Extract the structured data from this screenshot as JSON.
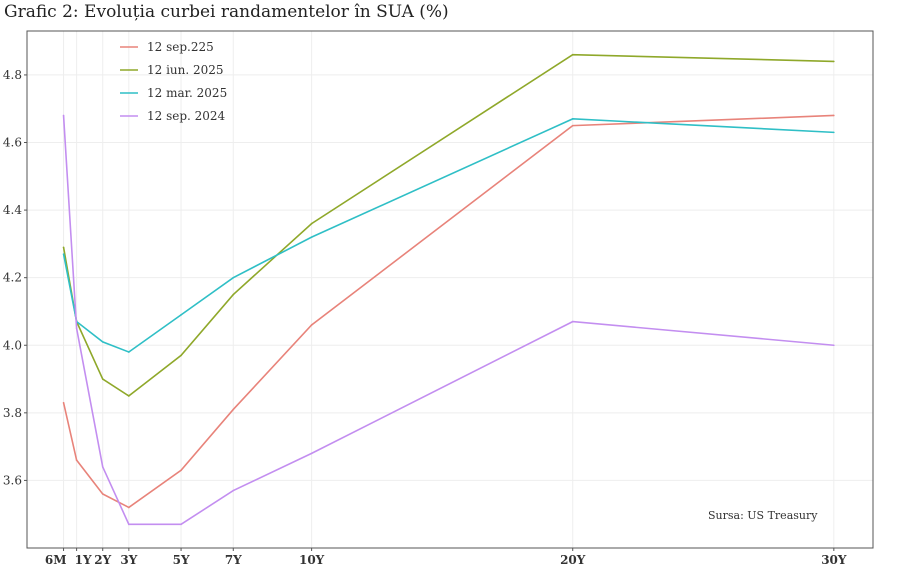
{
  "chart_data": {
    "type": "line",
    "title": "Grafic 2: Evoluția curbei randamentelor în SUA (%)",
    "xlabel": "",
    "ylabel": "",
    "x_years": [
      0.5,
      1,
      2,
      3,
      5,
      7,
      10,
      20,
      30
    ],
    "x_tick_labels": [
      "6M",
      "1Y",
      "2Y",
      "3Y",
      "5Y",
      "7Y",
      "10Y",
      "20Y",
      "30Y"
    ],
    "y_ticks": [
      3.6,
      3.8,
      4.0,
      4.2,
      4.4,
      4.6,
      4.8
    ],
    "ylim": [
      3.4,
      4.93
    ],
    "xlim": [
      -0.9,
      31.5
    ],
    "grid": true,
    "legend_position": "top-left",
    "series": [
      {
        "name": "12 sep.225",
        "color": "#e8837a",
        "values": [
          3.83,
          3.66,
          3.56,
          3.52,
          3.63,
          3.81,
          4.06,
          4.65,
          4.68
        ]
      },
      {
        "name": "12 iun. 2025",
        "color": "#8fa82a",
        "values": [
          4.29,
          4.07,
          3.9,
          3.85,
          3.97,
          4.15,
          4.36,
          4.86,
          4.84
        ]
      },
      {
        "name": "12 mar. 2025",
        "color": "#2fbfc6",
        "values": [
          4.27,
          4.07,
          4.01,
          3.98,
          4.09,
          4.2,
          4.32,
          4.67,
          4.63
        ]
      },
      {
        "name": "12 sep. 2024",
        "color": "#c38ef0",
        "values": [
          4.68,
          4.05,
          3.64,
          3.47,
          3.47,
          3.57,
          3.68,
          4.07,
          4.0
        ]
      }
    ],
    "annotation": "Sursa: US Treasury"
  }
}
